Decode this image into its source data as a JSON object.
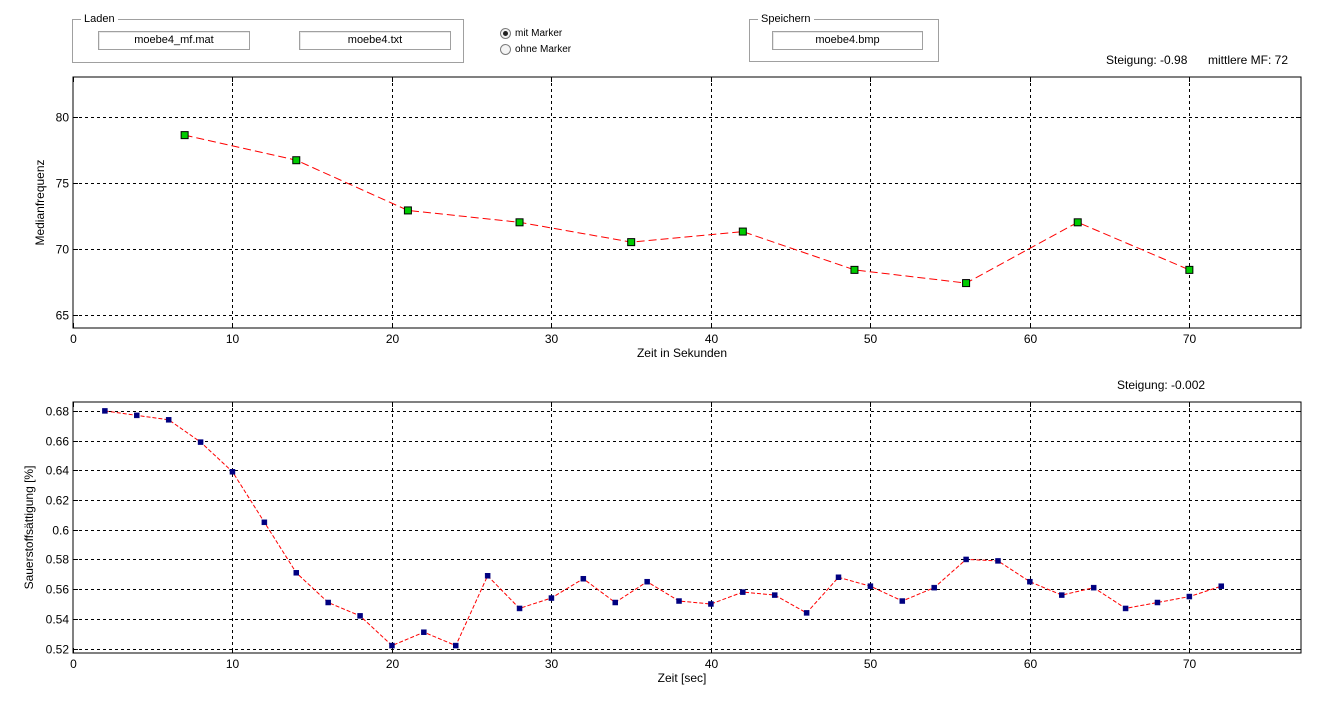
{
  "laden": {
    "title": "Laden",
    "file1": "moebe4_mf.mat",
    "file2": "moebe4.txt"
  },
  "marker_options": [
    {
      "label": "mit Marker",
      "selected": true
    },
    {
      "label": "ohne Marker",
      "selected": false
    }
  ],
  "speichern": {
    "title": "Speichern",
    "file": "moebe4.bmp"
  },
  "top_stats": {
    "steigung": "Steigung: -0.98",
    "mittlere_mf": "mittlere MF: 72"
  },
  "bottom_stats": {
    "steigung": "Steigung: -0.002"
  },
  "chart_data": [
    {
      "type": "line",
      "xlabel": "Zeit in Sekunden",
      "ylabel": "Medianfrequenz",
      "xlim": [
        0,
        77
      ],
      "ylim": [
        64,
        83
      ],
      "xticks": [
        0,
        10,
        20,
        30,
        40,
        50,
        60,
        70
      ],
      "yticks": [
        65,
        70,
        75,
        80
      ],
      "grid": true,
      "line_color": "#ff0000",
      "marker_color": "#00cc00",
      "x": [
        7,
        14,
        21,
        28,
        35,
        42,
        49,
        56,
        63,
        70
      ],
      "y": [
        78.6,
        76.7,
        72.9,
        72.0,
        70.5,
        71.3,
        68.4,
        67.4,
        72.0,
        68.4
      ]
    },
    {
      "type": "line",
      "xlabel": "Zeit [sec]",
      "ylabel": "Sauerstoffsättigung [%]",
      "xlim": [
        0,
        77
      ],
      "ylim": [
        0.517,
        0.686
      ],
      "xticks": [
        0,
        10,
        20,
        30,
        40,
        50,
        60,
        70
      ],
      "yticks": [
        0.52,
        0.54,
        0.56,
        0.58,
        0.6,
        0.62,
        0.64,
        0.66,
        0.68
      ],
      "grid": true,
      "line_color": "#ff0000",
      "marker_color": "#000080",
      "x": [
        2,
        4,
        6,
        8,
        10,
        12,
        14,
        16,
        18,
        20,
        22,
        24,
        26,
        28,
        30,
        32,
        34,
        36,
        38,
        40,
        42,
        44,
        46,
        48,
        50,
        52,
        54,
        56,
        58,
        60,
        62,
        64,
        66,
        68,
        70,
        72
      ],
      "y": [
        0.68,
        0.677,
        0.674,
        0.659,
        0.639,
        0.605,
        0.571,
        0.551,
        0.542,
        0.522,
        0.531,
        0.522,
        0.569,
        0.547,
        0.554,
        0.567,
        0.551,
        0.565,
        0.552,
        0.55,
        0.558,
        0.556,
        0.544,
        0.568,
        0.562,
        0.552,
        0.561,
        0.58,
        0.579,
        0.565,
        0.556,
        0.561,
        0.547,
        0.551,
        0.555,
        0.562
      ]
    }
  ]
}
